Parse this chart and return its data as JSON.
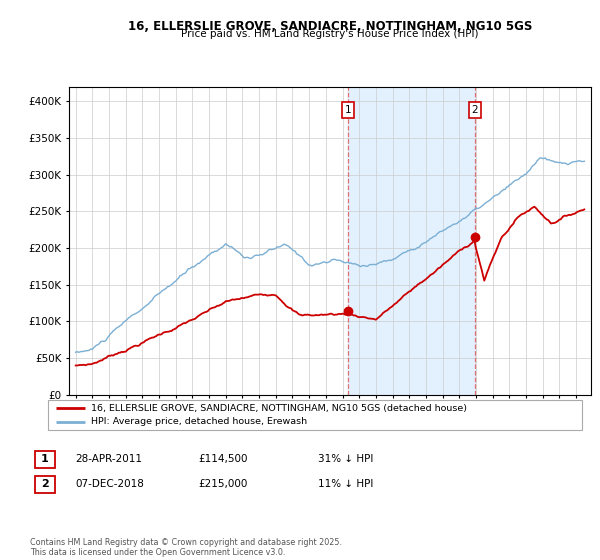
{
  "title_line1": "16, ELLERSLIE GROVE, SANDIACRE, NOTTINGHAM, NG10 5GS",
  "title_line2": "Price paid vs. HM Land Registry's House Price Index (HPI)",
  "legend_property": "16, ELLERSLIE GROVE, SANDIACRE, NOTTINGHAM, NG10 5GS (detached house)",
  "legend_hpi": "HPI: Average price, detached house, Erewash",
  "annotation1_date": "28-APR-2011",
  "annotation1_price": "£114,500",
  "annotation1_hpi": "31% ↓ HPI",
  "annotation2_date": "07-DEC-2018",
  "annotation2_price": "£215,000",
  "annotation2_hpi": "11% ↓ HPI",
  "footer": "Contains HM Land Registry data © Crown copyright and database right 2025.\nThis data is licensed under the Open Government Licence v3.0.",
  "color_property": "#cc0000",
  "color_hpi": "#7bafd4",
  "color_shade": "#ddeeff",
  "color_vline": "#e07070",
  "ylim_min": 0,
  "ylim_max": 420000,
  "sale1_year": 2011.32,
  "sale1_price": 114500,
  "sale2_year": 2018.92,
  "sale2_price": 215000,
  "xmin": 1994.6,
  "xmax": 2025.9
}
